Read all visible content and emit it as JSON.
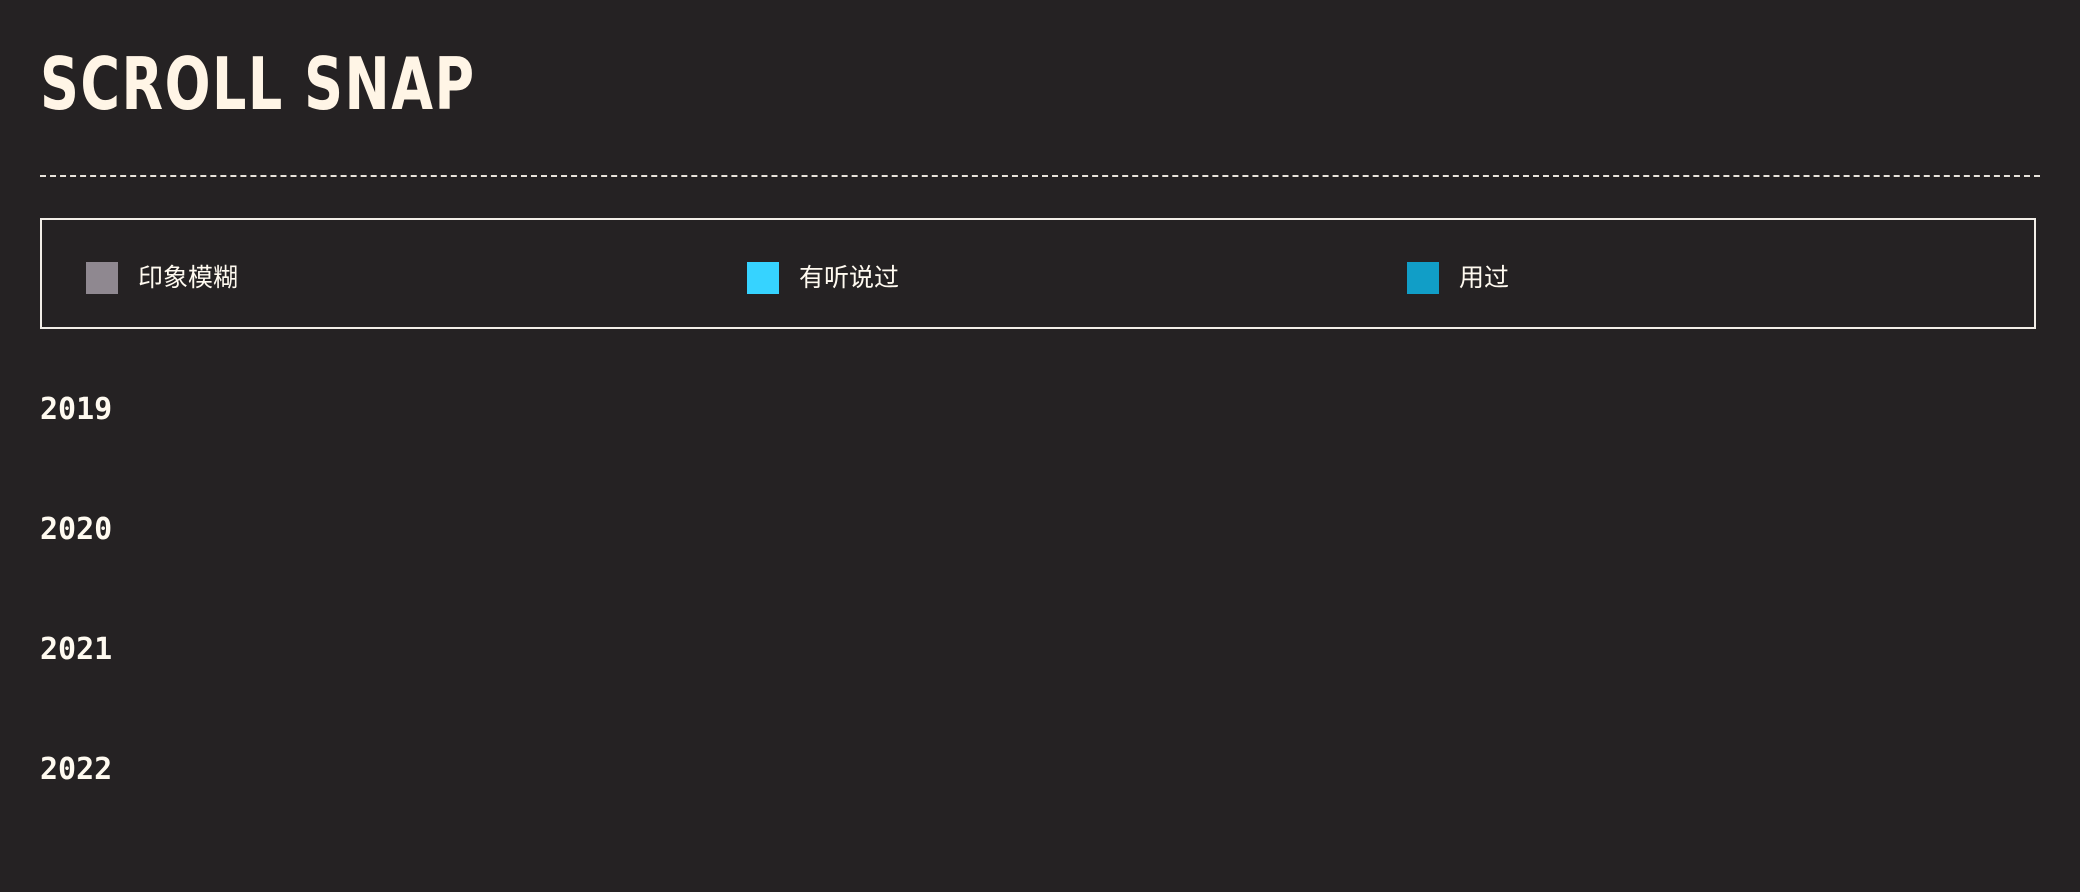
{
  "header": {
    "title": "SCROLL SNAP"
  },
  "legend": {
    "items": [
      {
        "label": "印象模糊",
        "color": "#8f8890"
      },
      {
        "label": "有听说过",
        "color": "#36d3ff"
      },
      {
        "label": "用过",
        "color": "#119ec7"
      }
    ]
  },
  "timeline": {
    "years": [
      "2019",
      "2020",
      "2021",
      "2022"
    ]
  }
}
